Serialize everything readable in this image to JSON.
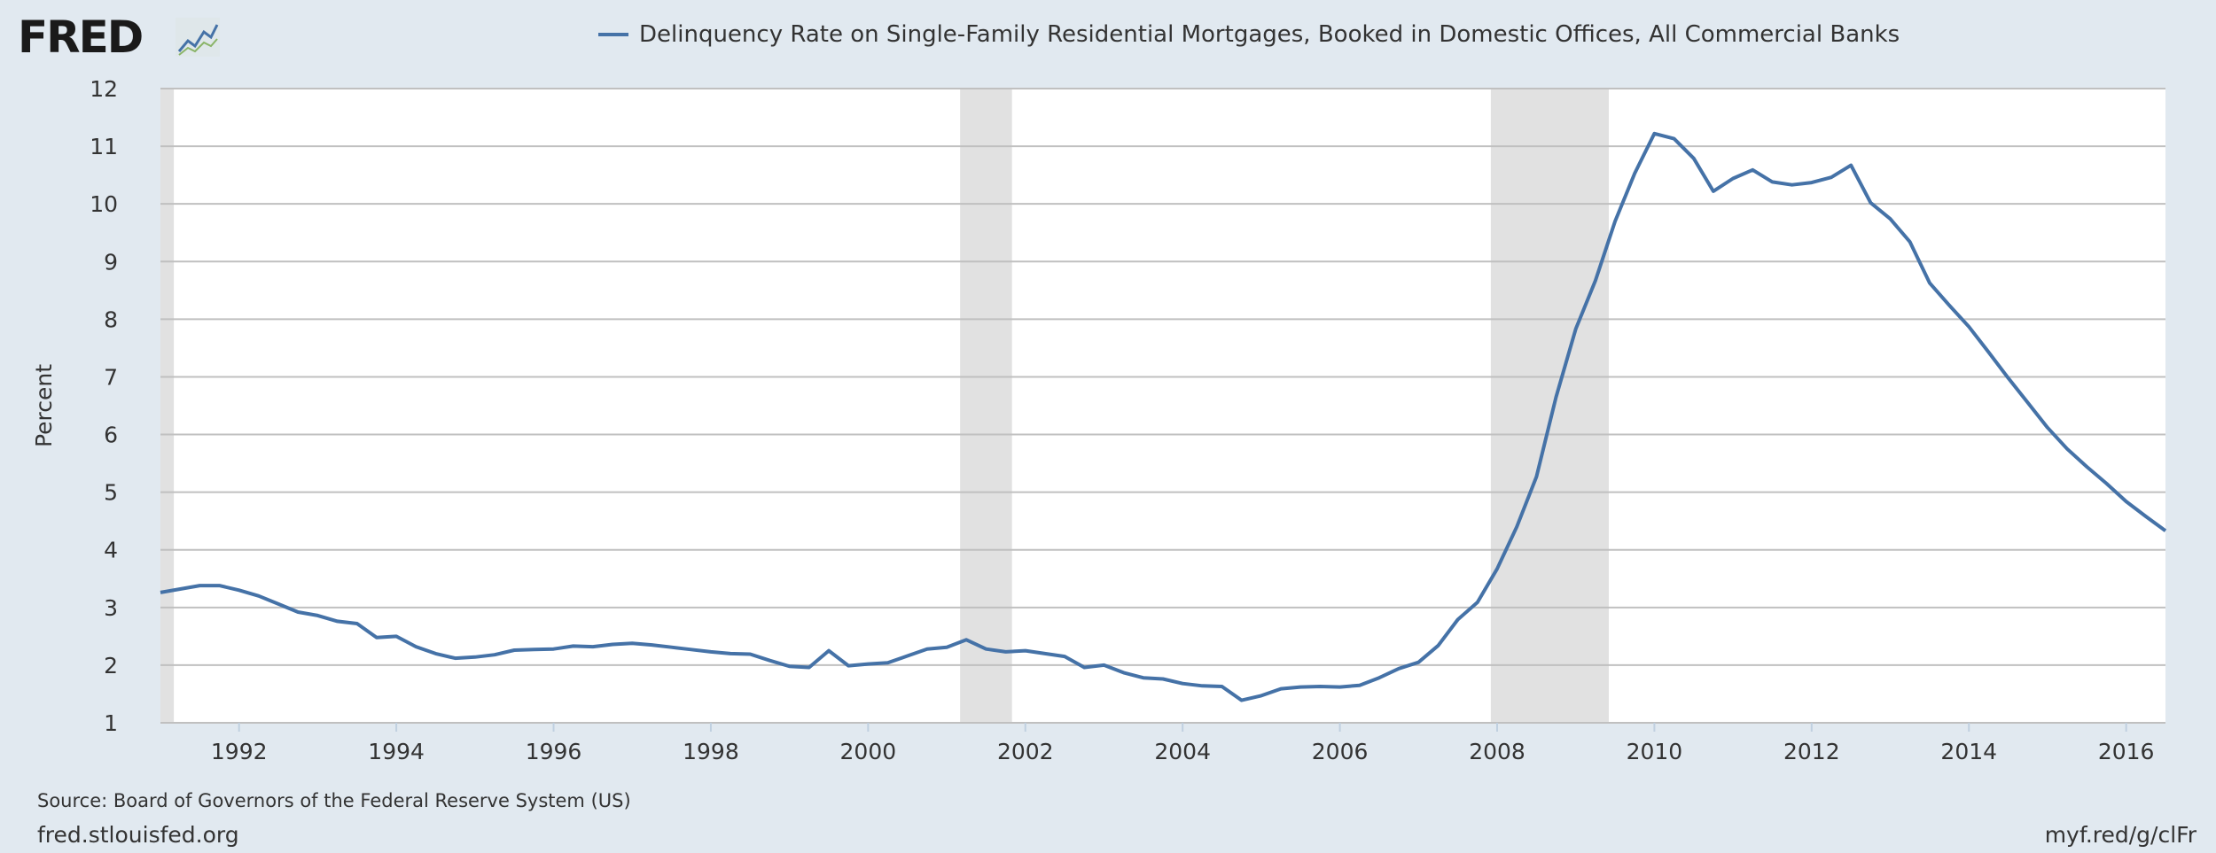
{
  "brand": {
    "logo_text": "FRED",
    "icon": "trend-line-icon"
  },
  "footer": {
    "source": "Source: Board of Governors of the Federal Reserve System (US)",
    "site": "fred.stlouisfed.org",
    "shortlink": "myf.red/g/clFr"
  },
  "colors": {
    "series": "#4572a7",
    "recession": "#e1e1e1",
    "background": "#e1e9f0",
    "plot": "#ffffff",
    "grid": "#c0c0c0"
  },
  "chart_data": {
    "type": "line",
    "title": "",
    "xlabel": "",
    "ylabel": "Percent",
    "ylim": [
      1,
      12
    ],
    "xlim": [
      1991.0,
      2016.5
    ],
    "y_ticks": [
      1,
      2,
      3,
      4,
      5,
      6,
      7,
      8,
      9,
      10,
      11,
      12
    ],
    "x_ticks": [
      1992,
      1994,
      1996,
      1998,
      2000,
      2002,
      2004,
      2006,
      2008,
      2010,
      2012,
      2014,
      2016
    ],
    "grid": true,
    "legend_position": "top-center",
    "recession_shading": [
      [
        1991.0,
        1991.17
      ],
      [
        2001.17,
        2001.83
      ],
      [
        2007.92,
        2009.42
      ]
    ],
    "series": [
      {
        "name": "Delinquency Rate on Single-Family Residential Mortgages, Booked in Domestic Offices, All Commercial Banks",
        "x": [
          1991.0,
          1991.25,
          1991.5,
          1991.75,
          1992.0,
          1992.25,
          1992.5,
          1992.75,
          1993.0,
          1993.25,
          1993.5,
          1993.75,
          1994.0,
          1994.25,
          1994.5,
          1994.75,
          1995.0,
          1995.25,
          1995.5,
          1995.75,
          1996.0,
          1996.25,
          1996.5,
          1996.75,
          1997.0,
          1997.25,
          1997.5,
          1997.75,
          1998.0,
          1998.25,
          1998.5,
          1998.75,
          1999.0,
          1999.25,
          1999.5,
          1999.75,
          2000.0,
          2000.25,
          2000.5,
          2000.75,
          2001.0,
          2001.25,
          2001.5,
          2001.75,
          2002.0,
          2002.25,
          2002.5,
          2002.75,
          2003.0,
          2003.25,
          2003.5,
          2003.75,
          2004.0,
          2004.25,
          2004.5,
          2004.75,
          2005.0,
          2005.25,
          2005.5,
          2005.75,
          2006.0,
          2006.25,
          2006.5,
          2006.75,
          2007.0,
          2007.25,
          2007.5,
          2007.75,
          2008.0,
          2008.25,
          2008.5,
          2008.75,
          2009.0,
          2009.25,
          2009.5,
          2009.75,
          2010.0,
          2010.25,
          2010.5,
          2010.75,
          2011.0,
          2011.25,
          2011.5,
          2011.75,
          2012.0,
          2012.25,
          2012.5,
          2012.75,
          2013.0,
          2013.25,
          2013.5,
          2013.75,
          2014.0,
          2014.25,
          2014.5,
          2014.75,
          2015.0,
          2015.25,
          2015.5,
          2015.75,
          2016.0,
          2016.25,
          2016.5
        ],
        "values": [
          3.26,
          3.32,
          3.38,
          3.38,
          3.3,
          3.2,
          3.06,
          2.92,
          2.86,
          2.76,
          2.72,
          2.48,
          2.5,
          2.32,
          2.2,
          2.12,
          2.14,
          2.18,
          2.26,
          2.27,
          2.28,
          2.33,
          2.32,
          2.36,
          2.38,
          2.35,
          2.31,
          2.27,
          2.23,
          2.2,
          2.19,
          2.08,
          1.98,
          1.96,
          2.25,
          1.99,
          2.02,
          2.04,
          2.16,
          2.28,
          2.31,
          2.44,
          2.28,
          2.23,
          2.25,
          2.2,
          2.15,
          1.96,
          2.0,
          1.87,
          1.78,
          1.76,
          1.68,
          1.64,
          1.63,
          1.39,
          1.47,
          1.59,
          1.62,
          1.63,
          1.62,
          1.65,
          1.78,
          1.94,
          2.05,
          2.34,
          2.79,
          3.09,
          3.67,
          4.4,
          5.27,
          6.65,
          7.83,
          8.67,
          9.7,
          10.53,
          11.22,
          11.13,
          10.79,
          10.22,
          10.44,
          10.59,
          10.38,
          10.33,
          10.37,
          10.46,
          10.67,
          10.02,
          9.74,
          9.34,
          8.63,
          8.24,
          7.87,
          7.43,
          6.98,
          6.55,
          6.12,
          5.75,
          5.44,
          5.15,
          4.84,
          4.58,
          4.33
        ]
      }
    ]
  }
}
